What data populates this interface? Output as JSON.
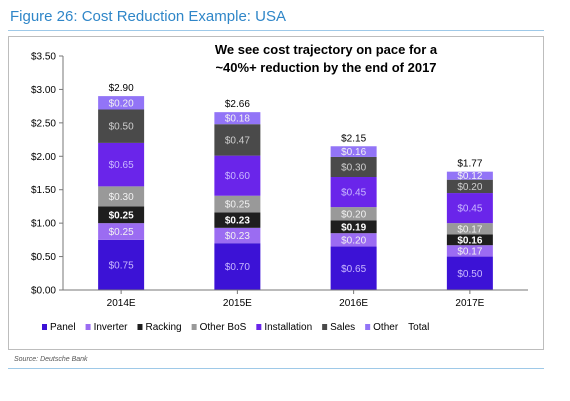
{
  "header": {
    "title": "Figure 26: Cost Reduction Example: USA"
  },
  "footer": {
    "source": "Source: Deutsche Bank"
  },
  "colors": {
    "Panel": "#3c12d6",
    "Inverter": "#9b6cf2",
    "Racking": "#1e1e1e",
    "Other BoS": "#999999",
    "Installation": "#6a25ea",
    "Sales": "#4a4a4a",
    "Other": "#9274f7",
    "Total": "#ffffff"
  },
  "chart_data": {
    "type": "bar",
    "stacked": true,
    "categories": [
      "2014E",
      "2015E",
      "2016E",
      "2017E"
    ],
    "series": [
      {
        "name": "Panel",
        "values": [
          0.75,
          0.7,
          0.65,
          0.5
        ],
        "labels": [
          "$0.75",
          "$0.70",
          "$0.65",
          "$0.50"
        ]
      },
      {
        "name": "Inverter",
        "values": [
          0.25,
          0.23,
          0.2,
          0.17
        ],
        "labels": [
          "$0.25",
          "$0.23",
          "$0.20",
          "$0.17"
        ]
      },
      {
        "name": "Racking",
        "values": [
          0.25,
          0.23,
          0.19,
          0.16
        ],
        "labels": [
          "$0.25",
          "$0.23",
          "$0.19",
          "$0.16"
        ]
      },
      {
        "name": "Other BoS",
        "values": [
          0.3,
          0.25,
          0.2,
          0.17
        ],
        "labels": [
          "$0.30",
          "$0.25",
          "$0.20",
          "$0.17"
        ]
      },
      {
        "name": "Installation",
        "values": [
          0.65,
          0.6,
          0.45,
          0.45
        ],
        "labels": [
          "$0.65",
          "$0.60",
          "$0.45",
          "$0.45"
        ]
      },
      {
        "name": "Sales",
        "values": [
          0.5,
          0.47,
          0.3,
          0.2
        ],
        "labels": [
          "$0.50",
          "$0.47",
          "$0.30",
          "$0.20"
        ]
      },
      {
        "name": "Other",
        "values": [
          0.2,
          0.18,
          0.16,
          0.12
        ],
        "labels": [
          "$0.20",
          "$0.18",
          "$0.16",
          "$0.12"
        ]
      }
    ],
    "totals": [
      2.9,
      2.66,
      2.15,
      1.77
    ],
    "total_labels": [
      "$2.90",
      "$2.66",
      "$2.15",
      "$1.77"
    ],
    "legend_entries": [
      "Panel",
      "Inverter",
      "Racking",
      "Other BoS",
      "Installation",
      "Sales",
      "Other",
      "Total"
    ],
    "ylim": [
      0,
      3.5
    ],
    "yticks": [
      0,
      0.5,
      1.0,
      1.5,
      2.0,
      2.5,
      3.0,
      3.5
    ],
    "ytick_labels": [
      "$0.00",
      "$0.50",
      "$1.00",
      "$1.50",
      "$2.00",
      "$2.50",
      "$3.00",
      "$3.50"
    ],
    "annotation": [
      "We see cost trajectory on pace for a",
      "~40%+ reduction by the end of 2017"
    ],
    "legend_position": "bottom",
    "grid": false
  }
}
